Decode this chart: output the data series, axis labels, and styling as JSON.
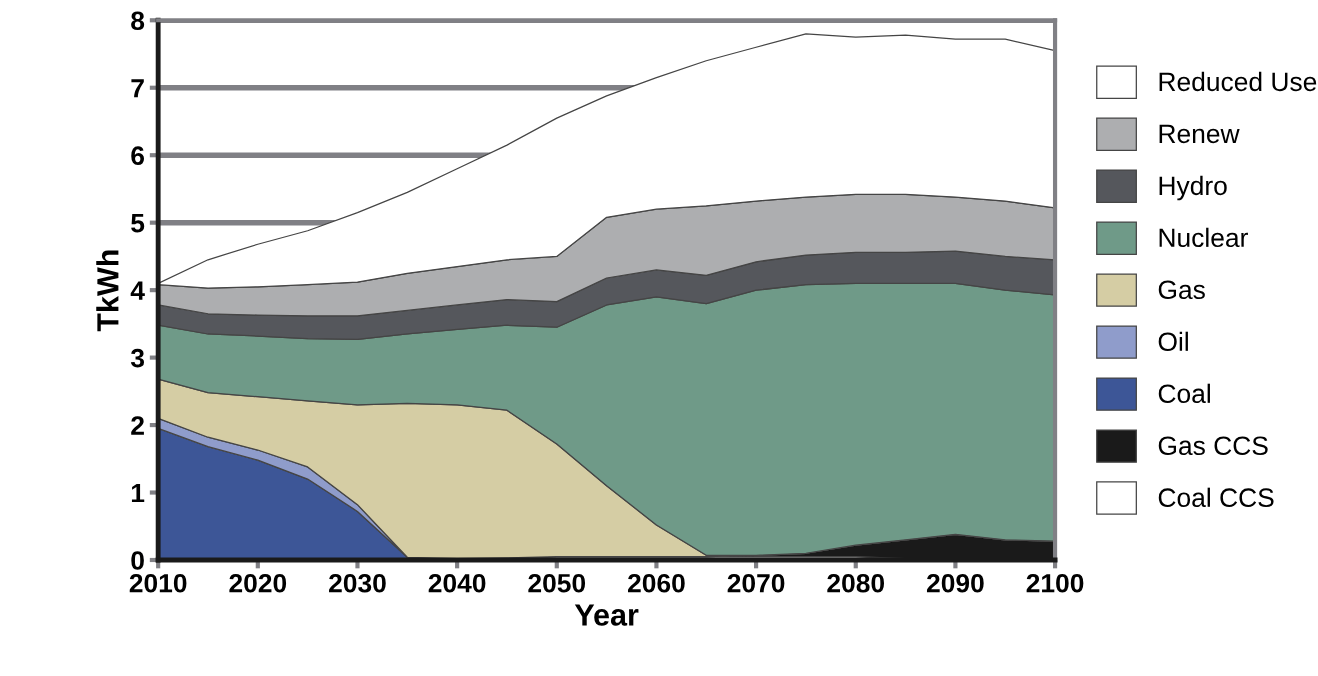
{
  "chart_data": {
    "type": "area",
    "stacked": true,
    "xlabel": "Year",
    "ylabel": "TkWh",
    "x": [
      2010,
      2015,
      2020,
      2025,
      2030,
      2035,
      2040,
      2045,
      2050,
      2055,
      2060,
      2065,
      2070,
      2075,
      2080,
      2085,
      2090,
      2095,
      2100
    ],
    "xlim": [
      2010,
      2100
    ],
    "xticks": [
      2010,
      2020,
      2030,
      2040,
      2050,
      2060,
      2070,
      2080,
      2090,
      2100
    ],
    "ylim": [
      0,
      8
    ],
    "yticks": [
      0,
      1,
      2,
      3,
      4,
      5,
      6,
      7,
      8
    ],
    "grid": "y",
    "legend": "right",
    "series": [
      {
        "name": "Coal CCS",
        "color": "#ffffff",
        "values": [
          0,
          0,
          0,
          0,
          0,
          0.02,
          0.02,
          0.03,
          0.05,
          0.05,
          0.05,
          0.05,
          0.05,
          0.05,
          0.05,
          0.02,
          0,
          0,
          0
        ]
      },
      {
        "name": "Gas CCS",
        "color": "#1a1a1a",
        "values": [
          0,
          0,
          0,
          0,
          0,
          0,
          0,
          0,
          0,
          0,
          0,
          0,
          0.02,
          0.05,
          0.17,
          0.28,
          0.38,
          0.3,
          0.28
        ]
      },
      {
        "name": "Coal",
        "color": "#3d5697",
        "values": [
          1.95,
          1.68,
          1.48,
          1.2,
          0.72,
          0.02,
          0,
          0,
          0,
          0,
          0,
          0,
          0,
          0,
          0,
          0,
          0,
          0,
          0
        ]
      },
      {
        "name": "Oil",
        "color": "#8f9ccb",
        "values": [
          0.15,
          0.14,
          0.15,
          0.18,
          0.1,
          0,
          0,
          0,
          0,
          0,
          0,
          0,
          0,
          0,
          0,
          0,
          0,
          0,
          0
        ]
      },
      {
        "name": "Gas",
        "color": "#d5cda4",
        "values": [
          0.58,
          0.66,
          0.79,
          0.98,
          1.48,
          2.28,
          2.28,
          2.19,
          1.67,
          1.05,
          0.47,
          0.02,
          0,
          0,
          0,
          0,
          0,
          0,
          0
        ]
      },
      {
        "name": "Nuclear",
        "color": "#6f9a88",
        "values": [
          0.8,
          0.87,
          0.9,
          0.92,
          0.97,
          1.03,
          1.12,
          1.26,
          1.73,
          2.68,
          3.38,
          3.73,
          3.93,
          3.98,
          3.88,
          3.8,
          3.72,
          3.7,
          3.65
        ]
      },
      {
        "name": "Hydro",
        "color": "#55575c",
        "values": [
          0.3,
          0.3,
          0.31,
          0.34,
          0.35,
          0.35,
          0.36,
          0.38,
          0.38,
          0.4,
          0.4,
          0.42,
          0.42,
          0.44,
          0.46,
          0.46,
          0.48,
          0.5,
          0.52
        ]
      },
      {
        "name": "Renew",
        "color": "#adaeb0",
        "values": [
          0.3,
          0.38,
          0.42,
          0.46,
          0.5,
          0.55,
          0.57,
          0.59,
          0.67,
          0.9,
          0.9,
          1.03,
          0.9,
          0.86,
          0.86,
          0.86,
          0.8,
          0.82,
          0.77
        ]
      },
      {
        "name": "Reduced Use",
        "color": "#ffffff",
        "values": [
          0.02,
          0.42,
          0.63,
          0.8,
          1.03,
          1.2,
          1.45,
          1.7,
          2.05,
          1.8,
          1.95,
          2.15,
          2.28,
          2.42,
          2.33,
          2.36,
          2.34,
          2.4,
          2.33
        ]
      }
    ]
  }
}
